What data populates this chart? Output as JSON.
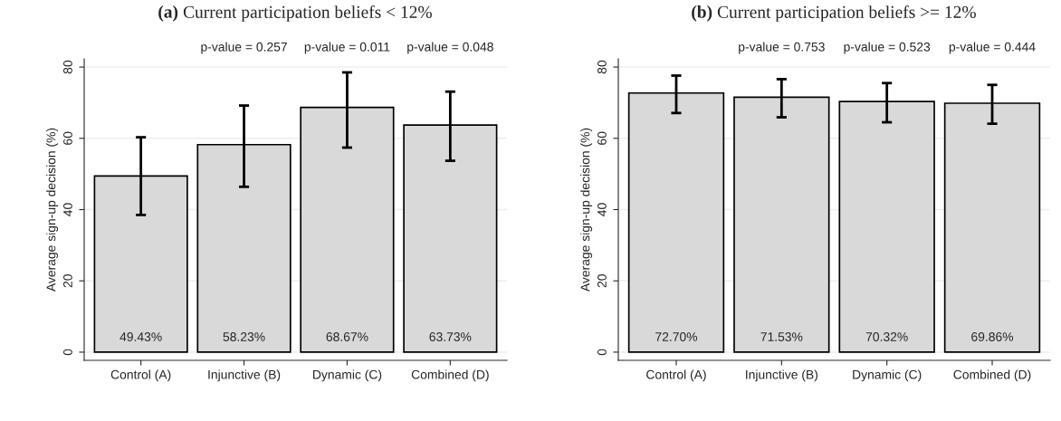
{
  "chart_data": [
    {
      "type": "bar",
      "title": "(a) Current participation beliefs < 12%",
      "ylabel": "Average sign-up decision (%)",
      "categories": [
        "Control (A)",
        "Injunctive (B)",
        "Dynamic (C)",
        "Combined (D)"
      ],
      "values": [
        49.43,
        58.23,
        68.67,
        63.73
      ],
      "color": "#d9d9d9",
      "value_labels": [
        "49.43%",
        "58.23%",
        "68.67%",
        "63.73%"
      ],
      "errors": [
        [
          38.5,
          60.3
        ],
        [
          46.4,
          69.2
        ],
        [
          57.4,
          78.5
        ],
        [
          53.7,
          73.1
        ]
      ],
      "ylim": [
        -2.3,
        82.3
      ],
      "yticks": [
        0,
        20,
        40,
        60,
        80
      ],
      "grid": "y",
      "annotations": [
        "p-value = 0.257",
        "p-value = 0.011",
        "p-value = 0.048"
      ]
    },
    {
      "type": "bar",
      "title": "(b) Current participation beliefs >= 12%",
      "ylabel": "Average sign-up decision (%)",
      "categories": [
        "Control (A)",
        "Injunctive (B)",
        "Dynamic (C)",
        "Combined (D)"
      ],
      "values": [
        72.7,
        71.53,
        70.32,
        69.86
      ],
      "color": "#d9d9d9",
      "value_labels": [
        "72.70%",
        "71.53%",
        "70.32%",
        "69.86%"
      ],
      "errors": [
        [
          67.1,
          77.6
        ],
        [
          65.9,
          76.6
        ],
        [
          64.5,
          75.5
        ],
        [
          64.1,
          75.0
        ]
      ],
      "ylim": [
        -2.3,
        82.3
      ],
      "yticks": [
        0,
        20,
        40,
        60,
        80
      ],
      "grid": "y",
      "annotations": [
        "p-value = 0.753",
        "p-value = 0.523",
        "p-value = 0.444"
      ]
    }
  ]
}
